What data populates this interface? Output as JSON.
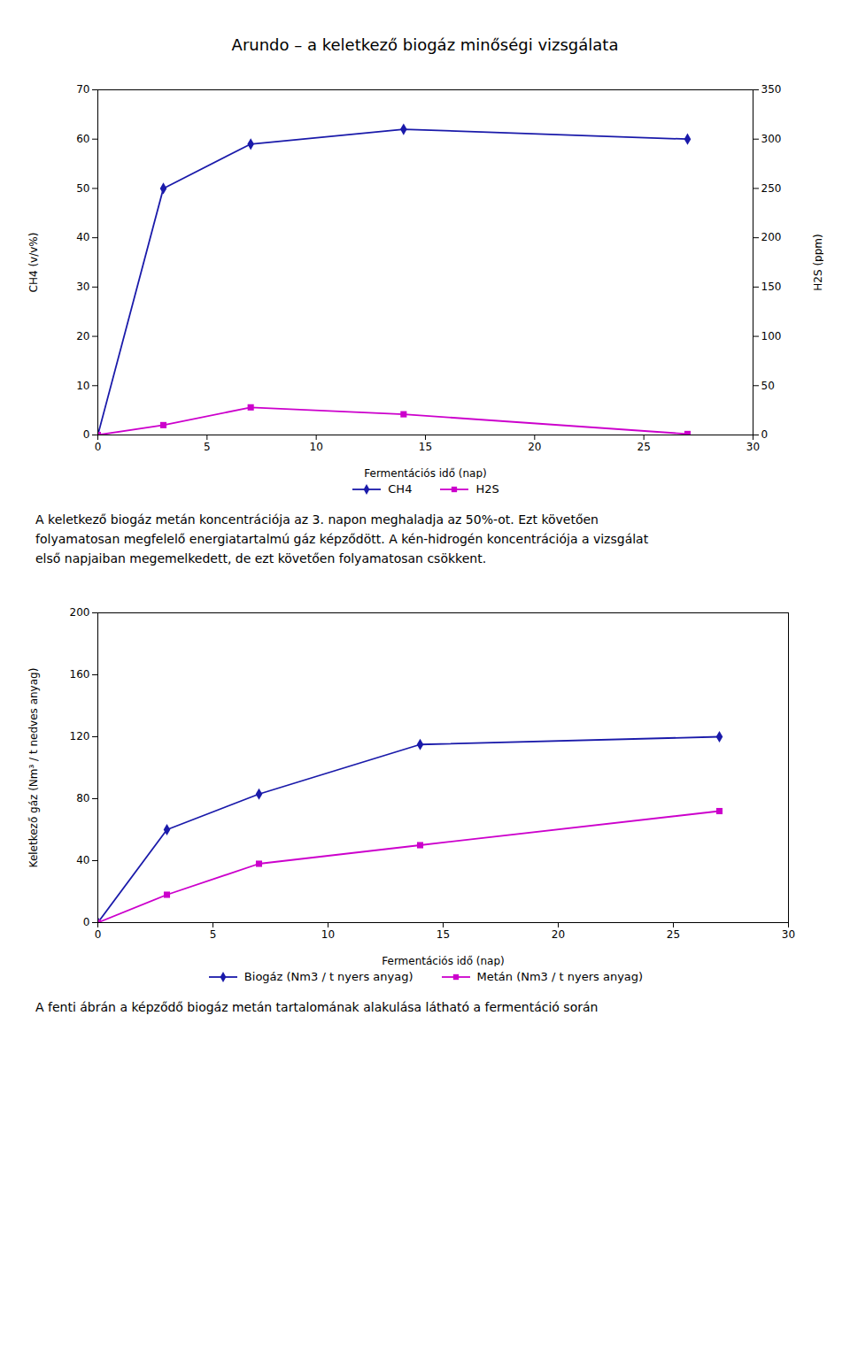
{
  "chart_data": [
    {
      "type": "line",
      "title": "Arundo – a keletkező biogáz minőségi vizsgálata",
      "x": [
        0,
        3,
        7,
        14,
        27
      ],
      "xlabel": "Fermentációs idő (nap)",
      "xlim": [
        0,
        30
      ],
      "xticks": [
        0,
        5,
        10,
        15,
        20,
        25,
        30
      ],
      "ylabel": "CH4 (v/v%)",
      "ylim": [
        0,
        70
      ],
      "yticks": [
        0,
        10,
        20,
        30,
        40,
        50,
        60,
        70
      ],
      "y2label": "H2S (ppm)",
      "y2lim": [
        0,
        350
      ],
      "y2ticks": [
        0,
        50,
        100,
        150,
        200,
        250,
        300,
        350
      ],
      "series": [
        {
          "name": "CH4",
          "color": "#1a1aaa",
          "marker": "diamond",
          "values": [
            0,
            50,
            59,
            62,
            60
          ]
        },
        {
          "name": "H2S",
          "color": "#cc00cc",
          "marker": "square",
          "axis": "y2",
          "values": [
            0,
            10,
            28,
            21,
            1
          ]
        }
      ],
      "legend": "bottom",
      "grid": false,
      "annotations": [
        "A keletkező biogáz metán koncentrációja az 3. napon meghaladja az 50%-ot. Ezt követően",
        "folyamatosan megfelelő energiatartalmú gáz képződött. A kén-hidrogén koncentrációja a vizsgálat",
        "első napjaiban megemelkedett, de ezt követően folyamatosan csökkent."
      ]
    },
    {
      "type": "line",
      "x": [
        0,
        3,
        7,
        14,
        27
      ],
      "xlabel": "Fermentációs idő (nap)",
      "xlim": [
        0,
        30
      ],
      "xticks": [
        0,
        5,
        10,
        15,
        20,
        25,
        30
      ],
      "ylabel": "Keletkező gáz (Nm³ / t nedves anyag)",
      "ylim": [
        0,
        200
      ],
      "yticks": [
        0,
        40,
        80,
        120,
        160,
        200
      ],
      "series": [
        {
          "name": "Biogáz (Nm3 / t nyers anyag)",
          "color": "#1a1aaa",
          "marker": "diamond",
          "values": [
            0,
            60,
            83,
            115,
            120
          ]
        },
        {
          "name": "Metán (Nm3 / t nyers anyag)",
          "color": "#cc00cc",
          "marker": "square",
          "values": [
            0,
            18,
            38,
            50,
            72
          ]
        }
      ],
      "legend": "bottom",
      "grid": false,
      "annotations": [
        "A fenti ábrán a képződő biogáz metán tartalomának alakulása látható a fermentáció során"
      ]
    }
  ]
}
